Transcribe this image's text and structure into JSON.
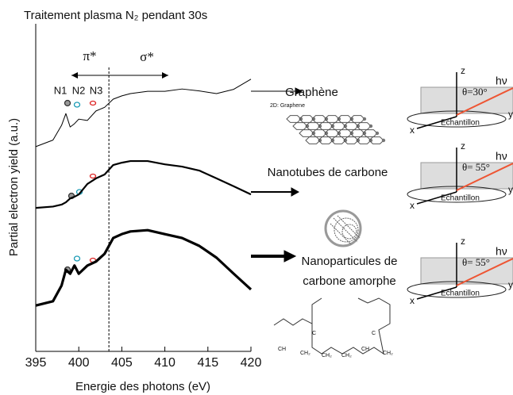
{
  "chart_data": {
    "type": "line",
    "title": "Traitement plasma N₂ pendant 30s",
    "x_label": "Energie des photons (eV)",
    "y_label": "Partial electron yield (a.u.)",
    "x": [
      395,
      397,
      398,
      398.5,
      399,
      399.5,
      400,
      401,
      402,
      403,
      404,
      405,
      406,
      408,
      410,
      412,
      414,
      416,
      418,
      420
    ],
    "xlim": [
      395,
      420
    ],
    "xticks": [
      395,
      400,
      405,
      410,
      415,
      420
    ],
    "ylim": [
      0,
      10
    ],
    "series": [
      {
        "name": "Graphène",
        "color": "#000000",
        "width": 1,
        "values": [
          6.25,
          6.45,
          6.9,
          7.26,
          6.85,
          6.95,
          7.09,
          7.05,
          7.34,
          7.45,
          7.7,
          7.8,
          7.87,
          7.94,
          7.94,
          8.01,
          7.95,
          7.87,
          8.0,
          8.31
        ]
      },
      {
        "name": "Nanotubes de carbone",
        "color": "#000000",
        "width": 2.2,
        "values": [
          4.38,
          4.42,
          4.48,
          4.55,
          4.67,
          4.72,
          4.79,
          5.11,
          5.28,
          5.4,
          5.69,
          5.76,
          5.81,
          5.81,
          5.71,
          5.64,
          5.52,
          5.28,
          5.04,
          4.79
        ]
      },
      {
        "name": "Nanoparticules de carbone amorphe",
        "color": "#000000",
        "width": 3.2,
        "values": [
          1.4,
          1.53,
          2.01,
          2.49,
          2.37,
          2.62,
          2.37,
          2.62,
          2.74,
          2.98,
          3.46,
          3.58,
          3.66,
          3.7,
          3.58,
          3.46,
          3.22,
          2.86,
          2.37,
          1.89
        ]
      }
    ],
    "annotations": {
      "pi": "π*",
      "sigma": "σ*",
      "n1": "N1",
      "n2": "N2",
      "n3": "N3",
      "divider_x": 403.5
    }
  },
  "graphene_caption": "2D: Graphene",
  "geometry": [
    {
      "z": "z",
      "hv": "hν",
      "theta": "θ=30°",
      "sample": "Echantillon",
      "x": "x",
      "y": "y"
    },
    {
      "z": "z",
      "hv": "hν",
      "theta": "θ= 55°",
      "sample": "Echantillon",
      "x": "x",
      "y": "y"
    },
    {
      "z": "z",
      "hv": "hν",
      "theta": "θ= 55°",
      "sample": "Echantillon",
      "x": "x",
      "y": "y"
    }
  ],
  "molecule": [
    "CH",
    "CH₂",
    "C",
    "CH₂",
    "CH",
    "CH₂",
    "C",
    "CH₂"
  ]
}
